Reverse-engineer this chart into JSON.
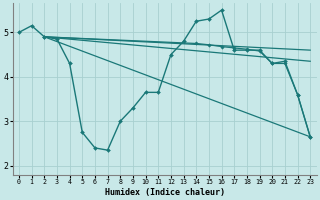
{
  "xlabel": "Humidex (Indice chaleur)",
  "bg_color": "#c8e8e8",
  "grid_color": "#a8d0d0",
  "line_color": "#1a7878",
  "ylim": [
    1.8,
    5.65
  ],
  "xlim": [
    -0.5,
    23.5
  ],
  "yticks": [
    2,
    3,
    4,
    5
  ],
  "xticks": [
    0,
    1,
    2,
    3,
    4,
    5,
    6,
    7,
    8,
    9,
    10,
    11,
    12,
    13,
    14,
    15,
    16,
    17,
    18,
    19,
    20,
    21,
    22,
    23
  ],
  "lines": [
    {
      "x": [
        0,
        1,
        2,
        3,
        4,
        5,
        6,
        7,
        8,
        9,
        10,
        11,
        12,
        13,
        14,
        15,
        16,
        17,
        18,
        19,
        20,
        21,
        22,
        23
      ],
      "y": [
        5.0,
        5.15,
        4.9,
        4.85,
        4.3,
        2.75,
        2.4,
        2.35,
        3.0,
        3.3,
        3.65,
        3.65,
        4.5,
        4.8,
        5.25,
        5.3,
        5.5,
        4.6,
        4.6,
        4.6,
        4.3,
        4.35,
        3.6,
        2.65
      ],
      "marker": true,
      "lw": 1.0,
      "ms": 2.0
    },
    {
      "x": [
        2,
        14,
        15,
        16,
        17,
        18,
        19,
        20,
        21,
        22,
        23
      ],
      "y": [
        4.9,
        4.75,
        4.72,
        4.68,
        4.65,
        4.62,
        4.58,
        4.3,
        4.3,
        3.6,
        2.65
      ],
      "marker": true,
      "lw": 0.9,
      "ms": 1.8
    },
    {
      "x": [
        2,
        23
      ],
      "y": [
        4.9,
        4.6
      ],
      "marker": false,
      "lw": 0.9,
      "ms": 0
    },
    {
      "x": [
        2,
        23
      ],
      "y": [
        4.9,
        4.35
      ],
      "marker": false,
      "lw": 0.9,
      "ms": 0
    },
    {
      "x": [
        2,
        23
      ],
      "y": [
        4.9,
        2.65
      ],
      "marker": false,
      "lw": 0.9,
      "ms": 0
    }
  ]
}
